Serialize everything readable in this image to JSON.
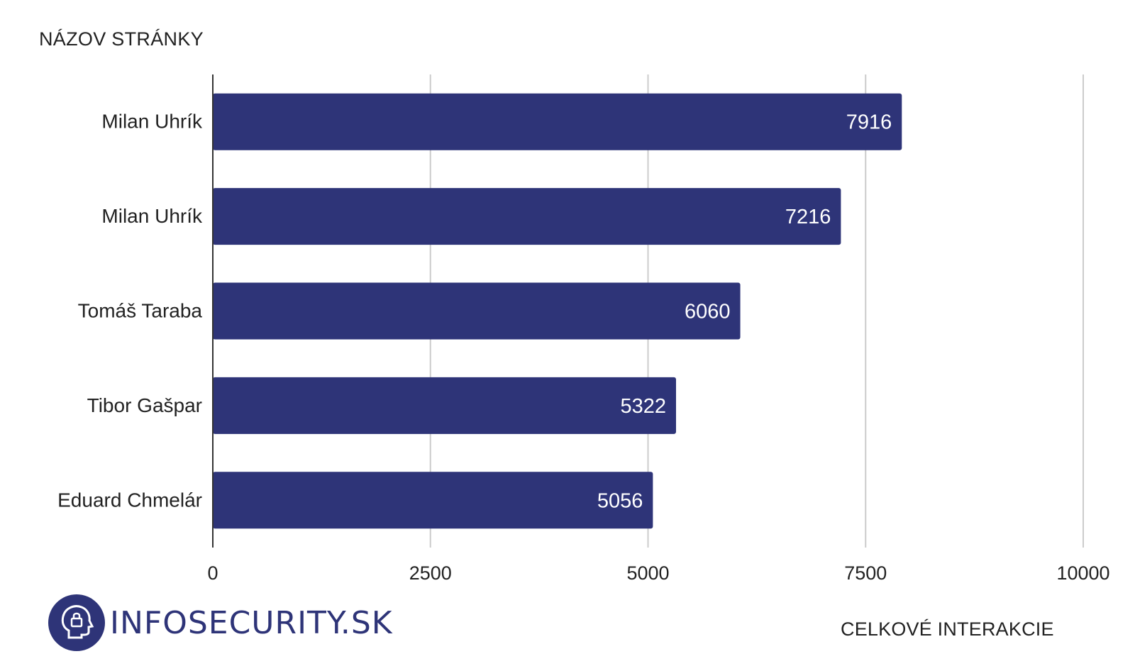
{
  "chart_data": {
    "type": "bar",
    "orientation": "horizontal",
    "ylabel": "NÁZOV STRÁNKY",
    "xlabel": "CELKOVÉ INTERAKCIE",
    "categories": [
      "Milan Uhrík",
      "Milan Uhrík",
      "Tomáš Taraba",
      "Tibor Gašpar",
      "Eduard Chmelár"
    ],
    "values": [
      7916,
      7216,
      6060,
      5322,
      5056
    ],
    "xlim": [
      0,
      10000
    ],
    "xticks": [
      0,
      2500,
      5000,
      7500,
      10000
    ],
    "grid": "vertical",
    "bar_color": "#2e3478",
    "data_labels": true
  },
  "branding": {
    "logo_text": "INFOSECURITY.SK",
    "logo_icon": "head-lock-icon",
    "logo_color": "#2e3478"
  }
}
